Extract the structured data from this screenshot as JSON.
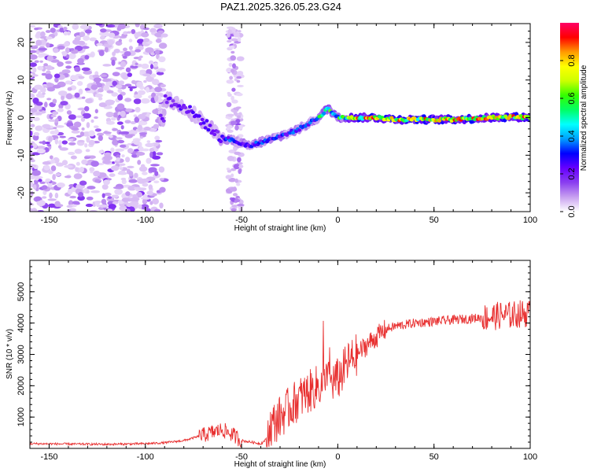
{
  "title": "PAZ1.2025.326.05.23.G24",
  "chart_data": [
    {
      "type": "heatmap",
      "name": "spectrogram",
      "xlabel": "Height of straight line (km)",
      "ylabel": "Frequency (Hz)",
      "xlim": [
        -160,
        100
      ],
      "ylim": [
        -25,
        25
      ],
      "xticks": [
        -150,
        -100,
        -50,
        0,
        50,
        100
      ],
      "yticks": [
        -20,
        -10,
        0,
        10,
        20
      ],
      "grid": false,
      "colorbar": {
        "label": "Normalized spectral amplitude",
        "range": [
          0,
          1
        ],
        "ticks": [
          0.0,
          0.2,
          0.4,
          0.6,
          0.8
        ],
        "colors": [
          "#ffffff",
          "#c8a0f0",
          "#8a3ef0",
          "#6600ff",
          "#0000ff",
          "#00a0ff",
          "#00ffff",
          "#00ff66",
          "#33ff00",
          "#ccff00",
          "#ffff00",
          "#ff9900",
          "#ff0000",
          "#ff0066"
        ]
      },
      "trace": {
        "description_points_x": [
          -90,
          -80,
          -70,
          -62,
          -55,
          -50,
          -45,
          -40,
          -30,
          -20,
          -10,
          -5,
          0,
          10,
          20,
          30,
          40,
          50,
          60,
          70,
          80,
          90,
          100
        ],
        "description_points_y": [
          5,
          3,
          -1,
          -5,
          -6,
          -7,
          -7.5,
          -6.5,
          -5,
          -3,
          0,
          2.5,
          0,
          0,
          0,
          -0.5,
          -0.5,
          -0.5,
          -0.5,
          -0.3,
          0,
          0.2,
          0
        ]
      }
    },
    {
      "type": "line",
      "name": "snr",
      "xlabel": "Height of straight line (km)",
      "ylabel": "SNR (10 * v/v)",
      "xlim": [
        -160,
        100
      ],
      "ylim": [
        0,
        6000
      ],
      "xticks": [
        -150,
        -100,
        -50,
        0,
        50,
        100
      ],
      "yticks": [
        1000,
        2000,
        3000,
        4000,
        5000
      ],
      "grid": false,
      "series": [
        {
          "name": "SNR",
          "color": "#e83030",
          "x": [
            -160,
            -140,
            -120,
            -100,
            -90,
            -80,
            -70,
            -60,
            -55,
            -50,
            -45,
            -40,
            -37,
            -35,
            -30,
            -25,
            -20,
            -15,
            -10,
            -5,
            0,
            5,
            10,
            15,
            20,
            25,
            30,
            40,
            50,
            60,
            70,
            80,
            85,
            90,
            95,
            98,
            100
          ],
          "values": [
            150,
            140,
            130,
            150,
            180,
            250,
            420,
            600,
            450,
            250,
            200,
            150,
            300,
            700,
            1000,
            1300,
            1600,
            1800,
            2000,
            2100,
            2200,
            2700,
            3000,
            3300,
            3550,
            3800,
            3900,
            4000,
            4050,
            4100,
            4150,
            4200,
            4250,
            4250,
            4300,
            4300,
            4300
          ]
        }
      ]
    }
  ]
}
